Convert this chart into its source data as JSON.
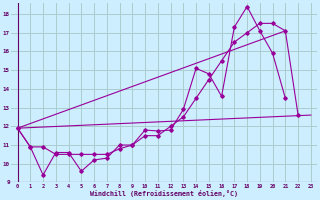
{
  "xlabel": "Windchill (Refroidissement éolien,°C)",
  "bg_color": "#cceeff",
  "grid_color": "#aacccc",
  "line_color": "#990099",
  "xlim": [
    -0.5,
    23.5
  ],
  "ylim": [
    9,
    18.6
  ],
  "xticks": [
    0,
    1,
    2,
    3,
    4,
    5,
    6,
    7,
    8,
    9,
    10,
    11,
    12,
    13,
    14,
    15,
    16,
    17,
    18,
    19,
    20,
    21,
    22,
    23
  ],
  "yticks": [
    9,
    10,
    11,
    12,
    13,
    14,
    15,
    16,
    17,
    18
  ],
  "line1_y": [
    11.9,
    10.9,
    9.4,
    10.6,
    10.6,
    9.6,
    10.2,
    10.3,
    11.0,
    11.0,
    11.8,
    11.75,
    11.8,
    12.9,
    15.1,
    14.8,
    13.6,
    17.3,
    18.4,
    17.1,
    15.9,
    13.5
  ],
  "line2_y": [
    11.9,
    10.9,
    10.9,
    10.5,
    10.5,
    10.5,
    10.5,
    10.5,
    10.8,
    11.0,
    11.5,
    11.5,
    12.0,
    12.5,
    13.5,
    14.5,
    15.5,
    16.5,
    17.0,
    17.5,
    17.5,
    17.1,
    12.6
  ],
  "line3_x": [
    0,
    23
  ],
  "line3_y": [
    11.9,
    12.6
  ],
  "line4_x": [
    0,
    21
  ],
  "line4_y": [
    11.9,
    17.1
  ]
}
